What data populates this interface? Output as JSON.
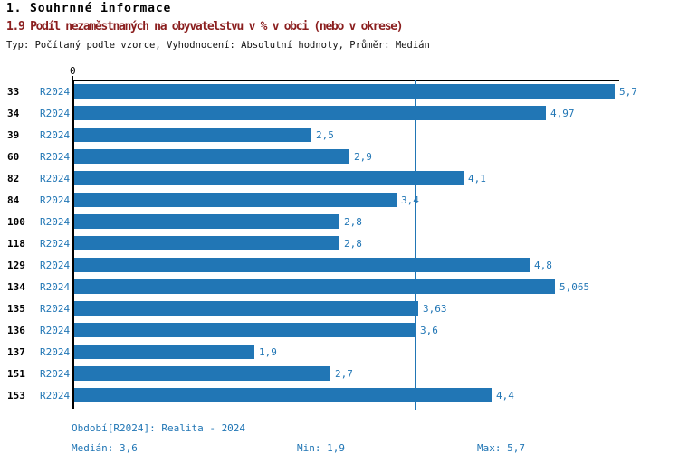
{
  "header": {
    "title": "1. Souhrnné informace",
    "subtitle": "1.9 Podíl nezaměstnaných na obyvatelstvu v % v obci (nebo v okrese)",
    "meta": "Typ: Počítaný podle vzorce, Vyhodnocení: Absolutní hodnoty, Průměr: Medián"
  },
  "chart_data": {
    "type": "bar",
    "orientation": "horizontal",
    "title": "1.9 Podíl nezaměstnaných na obyvatelstvu v % v obci (nebo v okrese)",
    "categories": [
      "33",
      "34",
      "39",
      "60",
      "82",
      "84",
      "100",
      "118",
      "129",
      "134",
      "135",
      "136",
      "137",
      "151",
      "153"
    ],
    "series": [
      {
        "name": "R2024",
        "values": [
          5.7,
          4.97,
          2.5,
          2.9,
          4.1,
          3.4,
          2.8,
          2.8,
          4.8,
          5.065,
          3.63,
          3.6,
          1.9,
          2.7,
          4.4
        ]
      }
    ],
    "value_labels": [
      "5,7",
      "4,97",
      "2,5",
      "2,9",
      "4,1",
      "3,4",
      "2,8",
      "2,8",
      "4,8",
      "5,065",
      "3,63",
      "3,6",
      "1,9",
      "2,7",
      "4,4"
    ],
    "row_series_label": "R2024",
    "xlabel": "",
    "ylabel": "",
    "xlim": [
      0,
      5.7
    ],
    "axis_origin_label": "0",
    "median_line": 3.6,
    "grid": false,
    "legend_position": "none",
    "bar_color": "#2176b5"
  },
  "footer": {
    "period_label": "Období[R2024]: Realita - 2024",
    "median_label": "Medián: 3,6",
    "min_label": "Min: 1,9",
    "max_label": "Max: 5,7"
  },
  "colors": {
    "accent_blue": "#2176b5",
    "subtitle_red": "#8b1f1f",
    "axis_black": "#000000",
    "background": "#ffffff"
  }
}
